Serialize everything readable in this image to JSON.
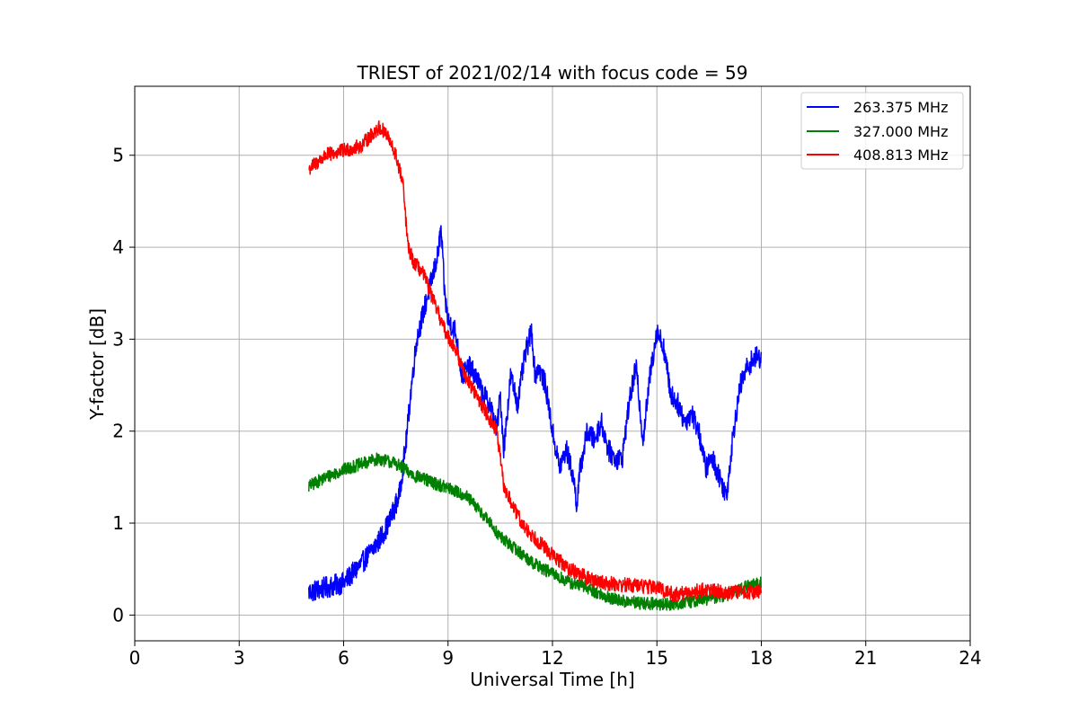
{
  "chart_data": {
    "type": "line",
    "title": "TRIEST of 2021/02/14 with focus code = 59",
    "xlabel": "Universal Time [h]",
    "ylabel": "Y-factor [dB]",
    "xlim": [
      0,
      24
    ],
    "ylim": [
      -0.28,
      5.75
    ],
    "xticks": [
      0,
      3,
      6,
      9,
      12,
      15,
      18,
      21,
      24
    ],
    "yticks": [
      0,
      1,
      2,
      3,
      4,
      5
    ],
    "grid": true,
    "legend_position": "upper-right",
    "series": [
      {
        "name": "263.375 MHz",
        "color": "#0000ff",
        "noise": 0.12,
        "x": [
          5.0,
          5.5,
          6.0,
          6.5,
          7.0,
          7.3,
          7.6,
          7.8,
          7.95,
          8.1,
          8.3,
          8.5,
          8.7,
          8.8,
          8.9,
          9.0,
          9.2,
          9.4,
          9.6,
          9.8,
          10.0,
          10.2,
          10.4,
          10.5,
          10.6,
          10.8,
          11.0,
          11.2,
          11.4,
          11.5,
          11.6,
          11.8,
          12.0,
          12.2,
          12.4,
          12.6,
          12.7,
          12.8,
          13.0,
          13.2,
          13.4,
          13.6,
          13.8,
          14.0,
          14.2,
          14.4,
          14.6,
          14.8,
          15.0,
          15.2,
          15.4,
          15.6,
          15.8,
          16.0,
          16.2,
          16.4,
          16.6,
          16.8,
          17.0,
          17.2,
          17.4,
          17.6,
          17.8,
          18.0
        ],
        "y": [
          0.25,
          0.3,
          0.35,
          0.55,
          0.8,
          1.0,
          1.3,
          1.9,
          2.5,
          3.0,
          3.3,
          3.6,
          3.9,
          4.2,
          3.5,
          3.2,
          3.1,
          2.6,
          2.7,
          2.6,
          2.4,
          2.3,
          2.0,
          2.4,
          1.8,
          2.6,
          2.3,
          2.8,
          3.1,
          2.6,
          2.7,
          2.5,
          2.0,
          1.6,
          1.8,
          1.5,
          1.2,
          1.6,
          2.0,
          1.9,
          2.1,
          1.8,
          1.7,
          1.7,
          2.3,
          2.7,
          1.9,
          2.6,
          3.1,
          2.9,
          2.4,
          2.3,
          2.1,
          2.2,
          2.0,
          1.6,
          1.7,
          1.5,
          1.3,
          2.0,
          2.5,
          2.7,
          2.8,
          2.8
        ]
      },
      {
        "name": "327.000 MHz",
        "color": "#008000",
        "noise": 0.07,
        "x": [
          5.0,
          5.5,
          6.0,
          6.5,
          7.0,
          7.5,
          8.0,
          8.5,
          9.0,
          9.5,
          10.0,
          10.5,
          11.0,
          11.5,
          12.0,
          12.5,
          13.0,
          13.5,
          14.0,
          14.5,
          15.0,
          15.5,
          16.0,
          16.5,
          17.0,
          17.5,
          18.0
        ],
        "y": [
          1.4,
          1.5,
          1.58,
          1.64,
          1.7,
          1.65,
          1.52,
          1.45,
          1.38,
          1.3,
          1.1,
          0.85,
          0.7,
          0.55,
          0.45,
          0.35,
          0.3,
          0.2,
          0.15,
          0.13,
          0.12,
          0.12,
          0.15,
          0.18,
          0.22,
          0.3,
          0.35
        ]
      },
      {
        "name": "408.813 MHz",
        "color": "#ff0000",
        "noise": 0.08,
        "x": [
          5.0,
          5.5,
          6.0,
          6.5,
          7.0,
          7.2,
          7.5,
          7.7,
          7.85,
          8.0,
          8.3,
          8.6,
          8.9,
          9.2,
          9.5,
          9.8,
          10.1,
          10.4,
          10.6,
          10.9,
          11.2,
          11.6,
          12.0,
          12.5,
          13.0,
          13.5,
          14.0,
          14.5,
          15.0,
          15.5,
          16.0,
          16.5,
          17.0,
          17.5,
          18.0
        ],
        "y": [
          4.85,
          5.0,
          5.05,
          5.1,
          5.3,
          5.25,
          5.0,
          4.7,
          4.0,
          3.85,
          3.7,
          3.4,
          3.1,
          2.9,
          2.6,
          2.4,
          2.2,
          2.0,
          1.4,
          1.15,
          0.95,
          0.8,
          0.65,
          0.5,
          0.4,
          0.35,
          0.33,
          0.32,
          0.3,
          0.22,
          0.25,
          0.28,
          0.25,
          0.25,
          0.25
        ]
      }
    ]
  }
}
